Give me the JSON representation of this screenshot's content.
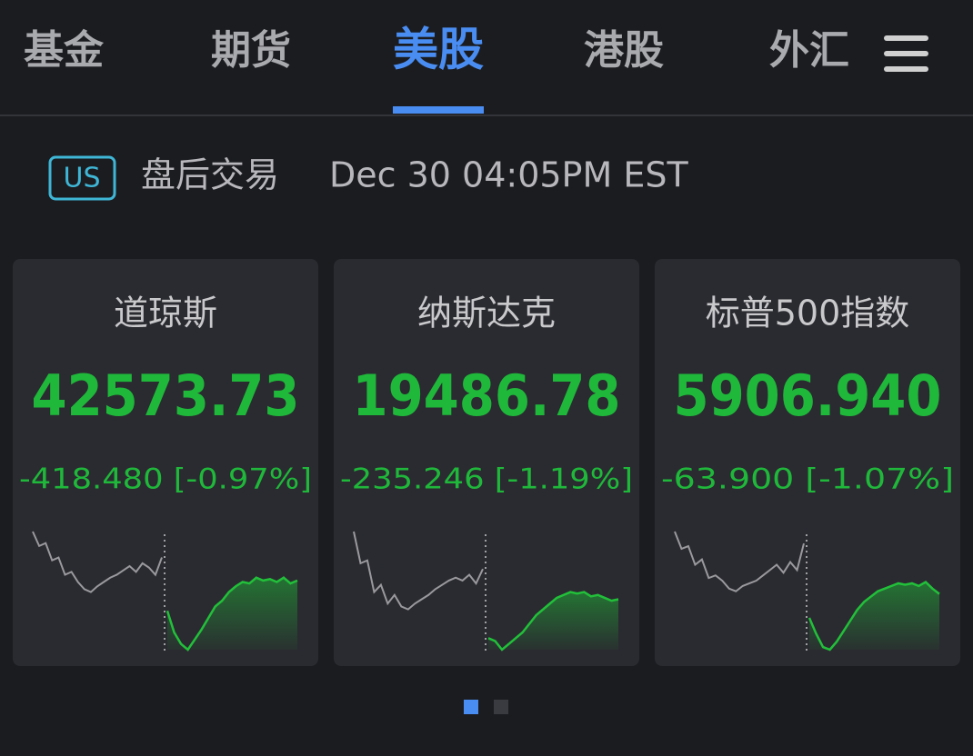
{
  "tabs": [
    "基金",
    "期货",
    "美股",
    "港股",
    "外汇"
  ],
  "active_tab": 2,
  "status": {
    "badge": "US",
    "session": "盘后交易",
    "time": "Dec 30 04:05PM EST"
  },
  "cards": [
    {
      "name": "道琼斯",
      "price": "42573.73",
      "change": "-418.480 [-0.97%]",
      "sparkline": {
        "before": [
          90,
          80,
          82,
          70,
          72,
          60,
          62,
          55,
          50,
          48,
          52,
          55,
          58,
          60,
          63,
          66,
          62,
          68,
          65,
          60,
          72
        ],
        "after": [
          35,
          20,
          12,
          8,
          15,
          22,
          30,
          38,
          42,
          48,
          52,
          55,
          54,
          58,
          56,
          57,
          55,
          58,
          54,
          56
        ]
      }
    },
    {
      "name": "纳斯达克",
      "price": "19486.78",
      "change": "-235.246 [-1.19%]",
      "sparkline": {
        "before": [
          92,
          70,
          72,
          50,
          55,
          42,
          48,
          40,
          38,
          42,
          45,
          48,
          52,
          55,
          58,
          60,
          58,
          62,
          56,
          66
        ],
        "after": [
          18,
          16,
          10,
          14,
          18,
          22,
          28,
          34,
          38,
          42,
          46,
          48,
          50,
          49,
          50,
          47,
          48,
          46,
          44,
          45
        ]
      }
    },
    {
      "name": "标普500指数",
      "price": "5906.940",
      "change": "-63.900 [-1.07%]",
      "sparkline": {
        "before": [
          95,
          82,
          84,
          70,
          74,
          60,
          62,
          58,
          52,
          50,
          54,
          56,
          58,
          62,
          66,
          70,
          64,
          72,
          66,
          86
        ],
        "after": [
          30,
          18,
          8,
          6,
          12,
          20,
          28,
          36,
          42,
          46,
          50,
          52,
          54,
          56,
          55,
          56,
          54,
          57,
          52,
          48
        ]
      }
    }
  ],
  "pager": {
    "count": 2,
    "active": 0
  }
}
